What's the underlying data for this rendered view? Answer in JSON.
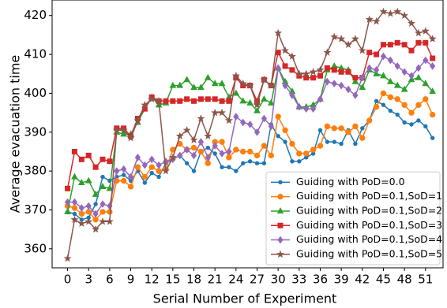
{
  "chart_data": {
    "type": "line",
    "xlabel": "Serial Number of Experiment",
    "ylabel": "Average evacuation time",
    "x": [
      0,
      1,
      2,
      3,
      4,
      5,
      6,
      7,
      8,
      9,
      10,
      11,
      12,
      13,
      14,
      15,
      16,
      17,
      18,
      19,
      20,
      21,
      22,
      23,
      24,
      25,
      26,
      27,
      28,
      29,
      30,
      31,
      32,
      33,
      34,
      35,
      36,
      37,
      38,
      39,
      40,
      41,
      42,
      43,
      44,
      45,
      46,
      47,
      48,
      49,
      50,
      51,
      52
    ],
    "xlim": [
      -2.2,
      53.5
    ],
    "xticks": [
      0,
      3,
      6,
      9,
      12,
      15,
      18,
      21,
      24,
      27,
      30,
      33,
      36,
      39,
      42,
      45,
      48,
      51
    ],
    "ylim": [
      355.1,
      424
    ],
    "yticks": [
      360,
      370,
      380,
      390,
      400,
      410,
      420
    ],
    "legend": "lower right",
    "series": [
      {
        "name": "Guiding with PoD=0.0",
        "color": "#1f77b4",
        "marker": "point",
        "values": [
          369.5,
          369,
          367.5,
          368,
          371.5,
          378.5,
          377.5,
          378.5,
          379,
          377.5,
          380,
          377,
          379.5,
          378.5,
          382,
          383,
          384,
          382,
          380,
          385,
          386,
          384.5,
          381,
          381,
          380,
          382,
          382.5,
          382,
          382,
          392,
          389,
          387.5,
          382.5,
          382.5,
          383.5,
          384.5,
          390.5,
          387.5,
          387.5,
          387,
          390.5,
          387,
          391,
          393,
          398,
          397,
          395.5,
          394.5,
          392.5,
          392,
          393,
          391.5,
          388.5
        ]
      },
      {
        "name": "Guiding with PoD=0.1,SoD=1",
        "color": "#ff7f0e",
        "marker": "circle",
        "values": [
          371,
          370.5,
          369,
          369.5,
          367.5,
          369.5,
          369.5,
          377.5,
          377.5,
          376,
          381,
          378.5,
          381,
          380,
          380.5,
          385.5,
          387,
          385.5,
          386,
          385,
          382,
          387.5,
          387.5,
          383.5,
          385.5,
          385,
          385,
          384,
          386.5,
          384,
          394,
          390.5,
          387,
          384.5,
          384.5,
          385.5,
          386.5,
          391.5,
          391,
          391,
          390,
          391.5,
          388.5,
          393,
          396.5,
          400,
          399,
          398.5,
          397,
          395,
          397,
          398.5,
          394.5
        ]
      },
      {
        "name": "Guiding with PoD=0.1,SoD=2",
        "color": "#2ca02c",
        "marker": "triangle",
        "values": [
          369.5,
          378.5,
          377,
          377.5,
          374,
          376,
          375.5,
          390,
          389.5,
          389.5,
          392.5,
          396,
          399,
          397,
          397.5,
          402,
          402,
          403.5,
          401.5,
          401.5,
          404,
          402.5,
          402.5,
          399,
          400,
          398,
          397.5,
          395.5,
          398.5,
          397.5,
          406.5,
          403,
          400.5,
          396.5,
          396.5,
          397,
          398.5,
          406,
          407,
          406.5,
          406,
          403,
          401.5,
          406,
          405,
          404.5,
          403,
          402,
          401,
          403.5,
          404,
          402.5,
          400.5
        ]
      },
      {
        "name": "Guiding with PoD=0.1,SoD=3",
        "color": "#d62728",
        "marker": "square",
        "values": [
          375.5,
          385,
          383,
          384,
          381,
          383,
          382.5,
          391,
          391,
          389,
          393.5,
          396,
          399,
          398,
          398,
          398,
          398,
          398.5,
          398,
          398.5,
          398.5,
          398.5,
          398,
          398,
          404,
          402,
          402,
          398,
          403.5,
          402,
          410.5,
          407,
          406,
          404.5,
          404,
          404,
          404.5,
          406.5,
          406,
          405.5,
          405.5,
          404,
          404,
          410.5,
          410,
          412.5,
          412.5,
          413,
          412.5,
          411,
          413,
          413,
          409
        ]
      },
      {
        "name": "Guiding with PoD=0.1,SoD=4",
        "color": "#9467bd",
        "marker": "diamond",
        "values": [
          372,
          372,
          370.5,
          371,
          369,
          371.5,
          371,
          380,
          380.5,
          378.5,
          383.5,
          381.5,
          383,
          381.5,
          382.5,
          383,
          384,
          385.5,
          384,
          387.5,
          383.5,
          386.5,
          384.5,
          385,
          394,
          392.5,
          392,
          390,
          393.5,
          391.5,
          406.5,
          402,
          399.5,
          396.5,
          396,
          396,
          398.5,
          403,
          402.5,
          402,
          401,
          399.5,
          404,
          406.5,
          406,
          409.5,
          408.5,
          407,
          405.5,
          404.5,
          406.5,
          408.5,
          407
        ]
      },
      {
        "name": "Guiding with PoD=0.1,SoD=5",
        "color": "#8c564b",
        "marker": "star",
        "values": [
          357.5,
          367.5,
          366.5,
          367,
          365,
          367,
          367,
          390.5,
          390.5,
          388.5,
          393,
          397,
          398.5,
          398,
          380,
          383.5,
          389,
          390.5,
          388,
          393.5,
          389,
          395,
          395,
          393,
          404.5,
          402.5,
          402,
          397,
          403.5,
          402,
          415.5,
          411,
          409.5,
          405,
          405,
          405.5,
          406,
          410.5,
          414.5,
          414,
          412.5,
          414,
          411,
          419,
          418.5,
          421,
          420.5,
          421,
          420,
          418,
          415.5,
          416,
          414
        ]
      }
    ]
  }
}
